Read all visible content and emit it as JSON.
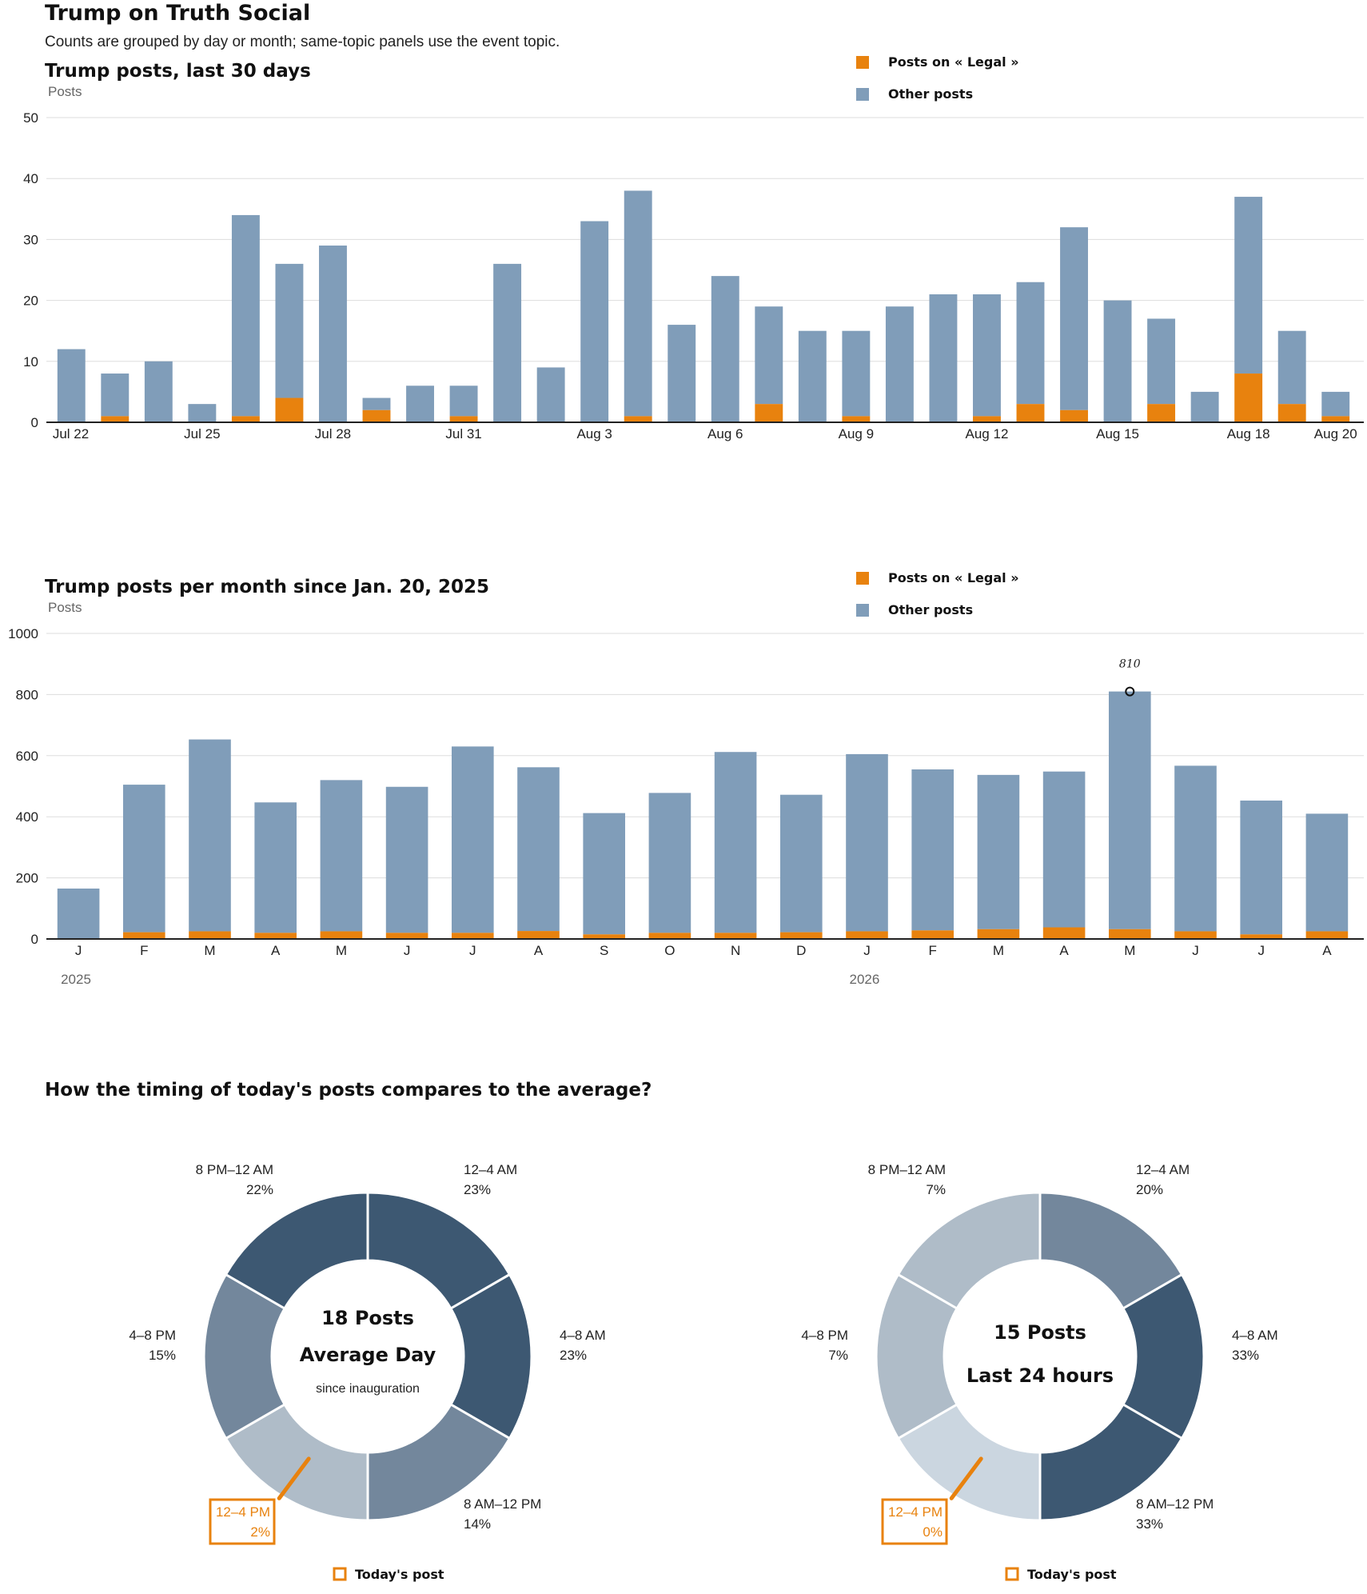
{
  "page": {
    "title": "Trump on Truth Social",
    "subtitle": "Counts are grouped by day or month; same-topic panels use the event topic."
  },
  "colors": {
    "topic": "#e8820e",
    "other": "#809db9",
    "grid": "#dddddd",
    "donut_shades": [
      "#3d5872",
      "#73879c",
      "#afbcc8",
      "#cbd6e0"
    ]
  },
  "legend": {
    "topic_label": "Posts on « Legal »",
    "other_label": "Other posts"
  },
  "chart_data": [
    {
      "type": "bar",
      "stacked": true,
      "title": "Trump posts, last 30 days",
      "ylabel": "Posts",
      "ylim": [
        0,
        50
      ],
      "yticks": [
        0,
        10,
        20,
        30,
        40,
        50
      ],
      "grid": true,
      "legend_position": "top-right",
      "categories": [
        "Jul 22",
        "Jul 23",
        "Jul 24",
        "Jul 25",
        "Jul 26",
        "Jul 27",
        "Jul 28",
        "Jul 29",
        "Jul 30",
        "Jul 31",
        "Aug 1",
        "Aug 2",
        "Aug 3",
        "Aug 4",
        "Aug 5",
        "Aug 6",
        "Aug 7",
        "Aug 8",
        "Aug 9",
        "Aug 10",
        "Aug 11",
        "Aug 12",
        "Aug 13",
        "Aug 14",
        "Aug 15",
        "Aug 16",
        "Aug 17",
        "Aug 18",
        "Aug 19",
        "Aug 20"
      ],
      "tick_labels": [
        "Jul 22",
        "",
        "",
        "Jul 25",
        "",
        "",
        "Jul 28",
        "",
        "",
        "Jul 31",
        "",
        "",
        "Aug 3",
        "",
        "",
        "Aug 6",
        "",
        "",
        "Aug 9",
        "",
        "",
        "Aug 12",
        "",
        "",
        "Aug 15",
        "",
        "",
        "Aug 18",
        "",
        "Aug 20"
      ],
      "series": [
        {
          "name": "Posts on « Legal »",
          "values": [
            0,
            1,
            0,
            0,
            1,
            4,
            0,
            2,
            0,
            1,
            0,
            0,
            0,
            1,
            0,
            0,
            3,
            0,
            1,
            0,
            0,
            1,
            3,
            2,
            0,
            3,
            0,
            8,
            3,
            1
          ]
        },
        {
          "name": "Other posts",
          "values": [
            12,
            7,
            10,
            3,
            33,
            22,
            29,
            2,
            6,
            5,
            26,
            9,
            33,
            37,
            16,
            24,
            16,
            15,
            14,
            19,
            21,
            20,
            20,
            30,
            20,
            14,
            5,
            29,
            12,
            4
          ]
        }
      ]
    },
    {
      "type": "bar",
      "stacked": true,
      "title": "Trump posts per month since Jan. 20, 2025",
      "ylabel": "Posts",
      "ylim": [
        0,
        1000
      ],
      "yticks": [
        0,
        200,
        400,
        600,
        800,
        1000
      ],
      "grid": true,
      "legend_position": "top-right",
      "categories": [
        "J",
        "F",
        "M",
        "A",
        "M",
        "J",
        "J",
        "A",
        "S",
        "O",
        "N",
        "D",
        "J",
        "F",
        "M",
        "A",
        "M",
        "J",
        "J",
        "A"
      ],
      "years": [
        {
          "label": "2025",
          "index": 0
        },
        {
          "label": "2026",
          "index": 12
        }
      ],
      "annotation": {
        "index": 16,
        "text": "810",
        "value": 810
      },
      "series": [
        {
          "name": "Posts on « Legal »",
          "values": [
            2,
            22,
            25,
            20,
            25,
            20,
            20,
            26,
            15,
            20,
            20,
            22,
            25,
            28,
            32,
            38,
            32,
            25,
            15,
            25
          ]
        },
        {
          "name": "Other posts",
          "values": [
            163,
            483,
            628,
            427,
            495,
            478,
            610,
            536,
            397,
            458,
            592,
            450,
            580,
            527,
            505,
            510,
            778,
            542,
            438,
            385
          ]
        }
      ]
    },
    {
      "type": "pie",
      "variant": "donut",
      "title": "How the timing of today's posts compares to the average?",
      "center_big": [
        "18 Posts",
        "Average Day"
      ],
      "center_small": "since inauguration",
      "slices": [
        {
          "label": "12–4 AM",
          "pct": "23%",
          "shade": 0
        },
        {
          "label": "4–8 AM",
          "pct": "23%",
          "shade": 0
        },
        {
          "label": "8 AM–12 PM",
          "pct": "14%",
          "shade": 1
        },
        {
          "label": "12–4 PM",
          "pct": "2%",
          "shade": 2,
          "highlight": true
        },
        {
          "label": "4–8 PM",
          "pct": "15%",
          "shade": 1
        },
        {
          "label": "8 PM–12 AM",
          "pct": "22%",
          "shade": 0
        }
      ],
      "today_label": "Today's post"
    },
    {
      "type": "pie",
      "variant": "donut",
      "center_big": [
        "15 Posts",
        "Last 24 hours"
      ],
      "center_small": "",
      "slices": [
        {
          "label": "12–4 AM",
          "pct": "20%",
          "shade": 1
        },
        {
          "label": "4–8 AM",
          "pct": "33%",
          "shade": 0
        },
        {
          "label": "8 AM–12 PM",
          "pct": "33%",
          "shade": 0
        },
        {
          "label": "12–4 PM",
          "pct": "0%",
          "shade": 3,
          "highlight": true
        },
        {
          "label": "4–8 PM",
          "pct": "7%",
          "shade": 2
        },
        {
          "label": "8 PM–12 AM",
          "pct": "7%",
          "shade": 2
        }
      ],
      "today_label": "Today's post"
    }
  ]
}
